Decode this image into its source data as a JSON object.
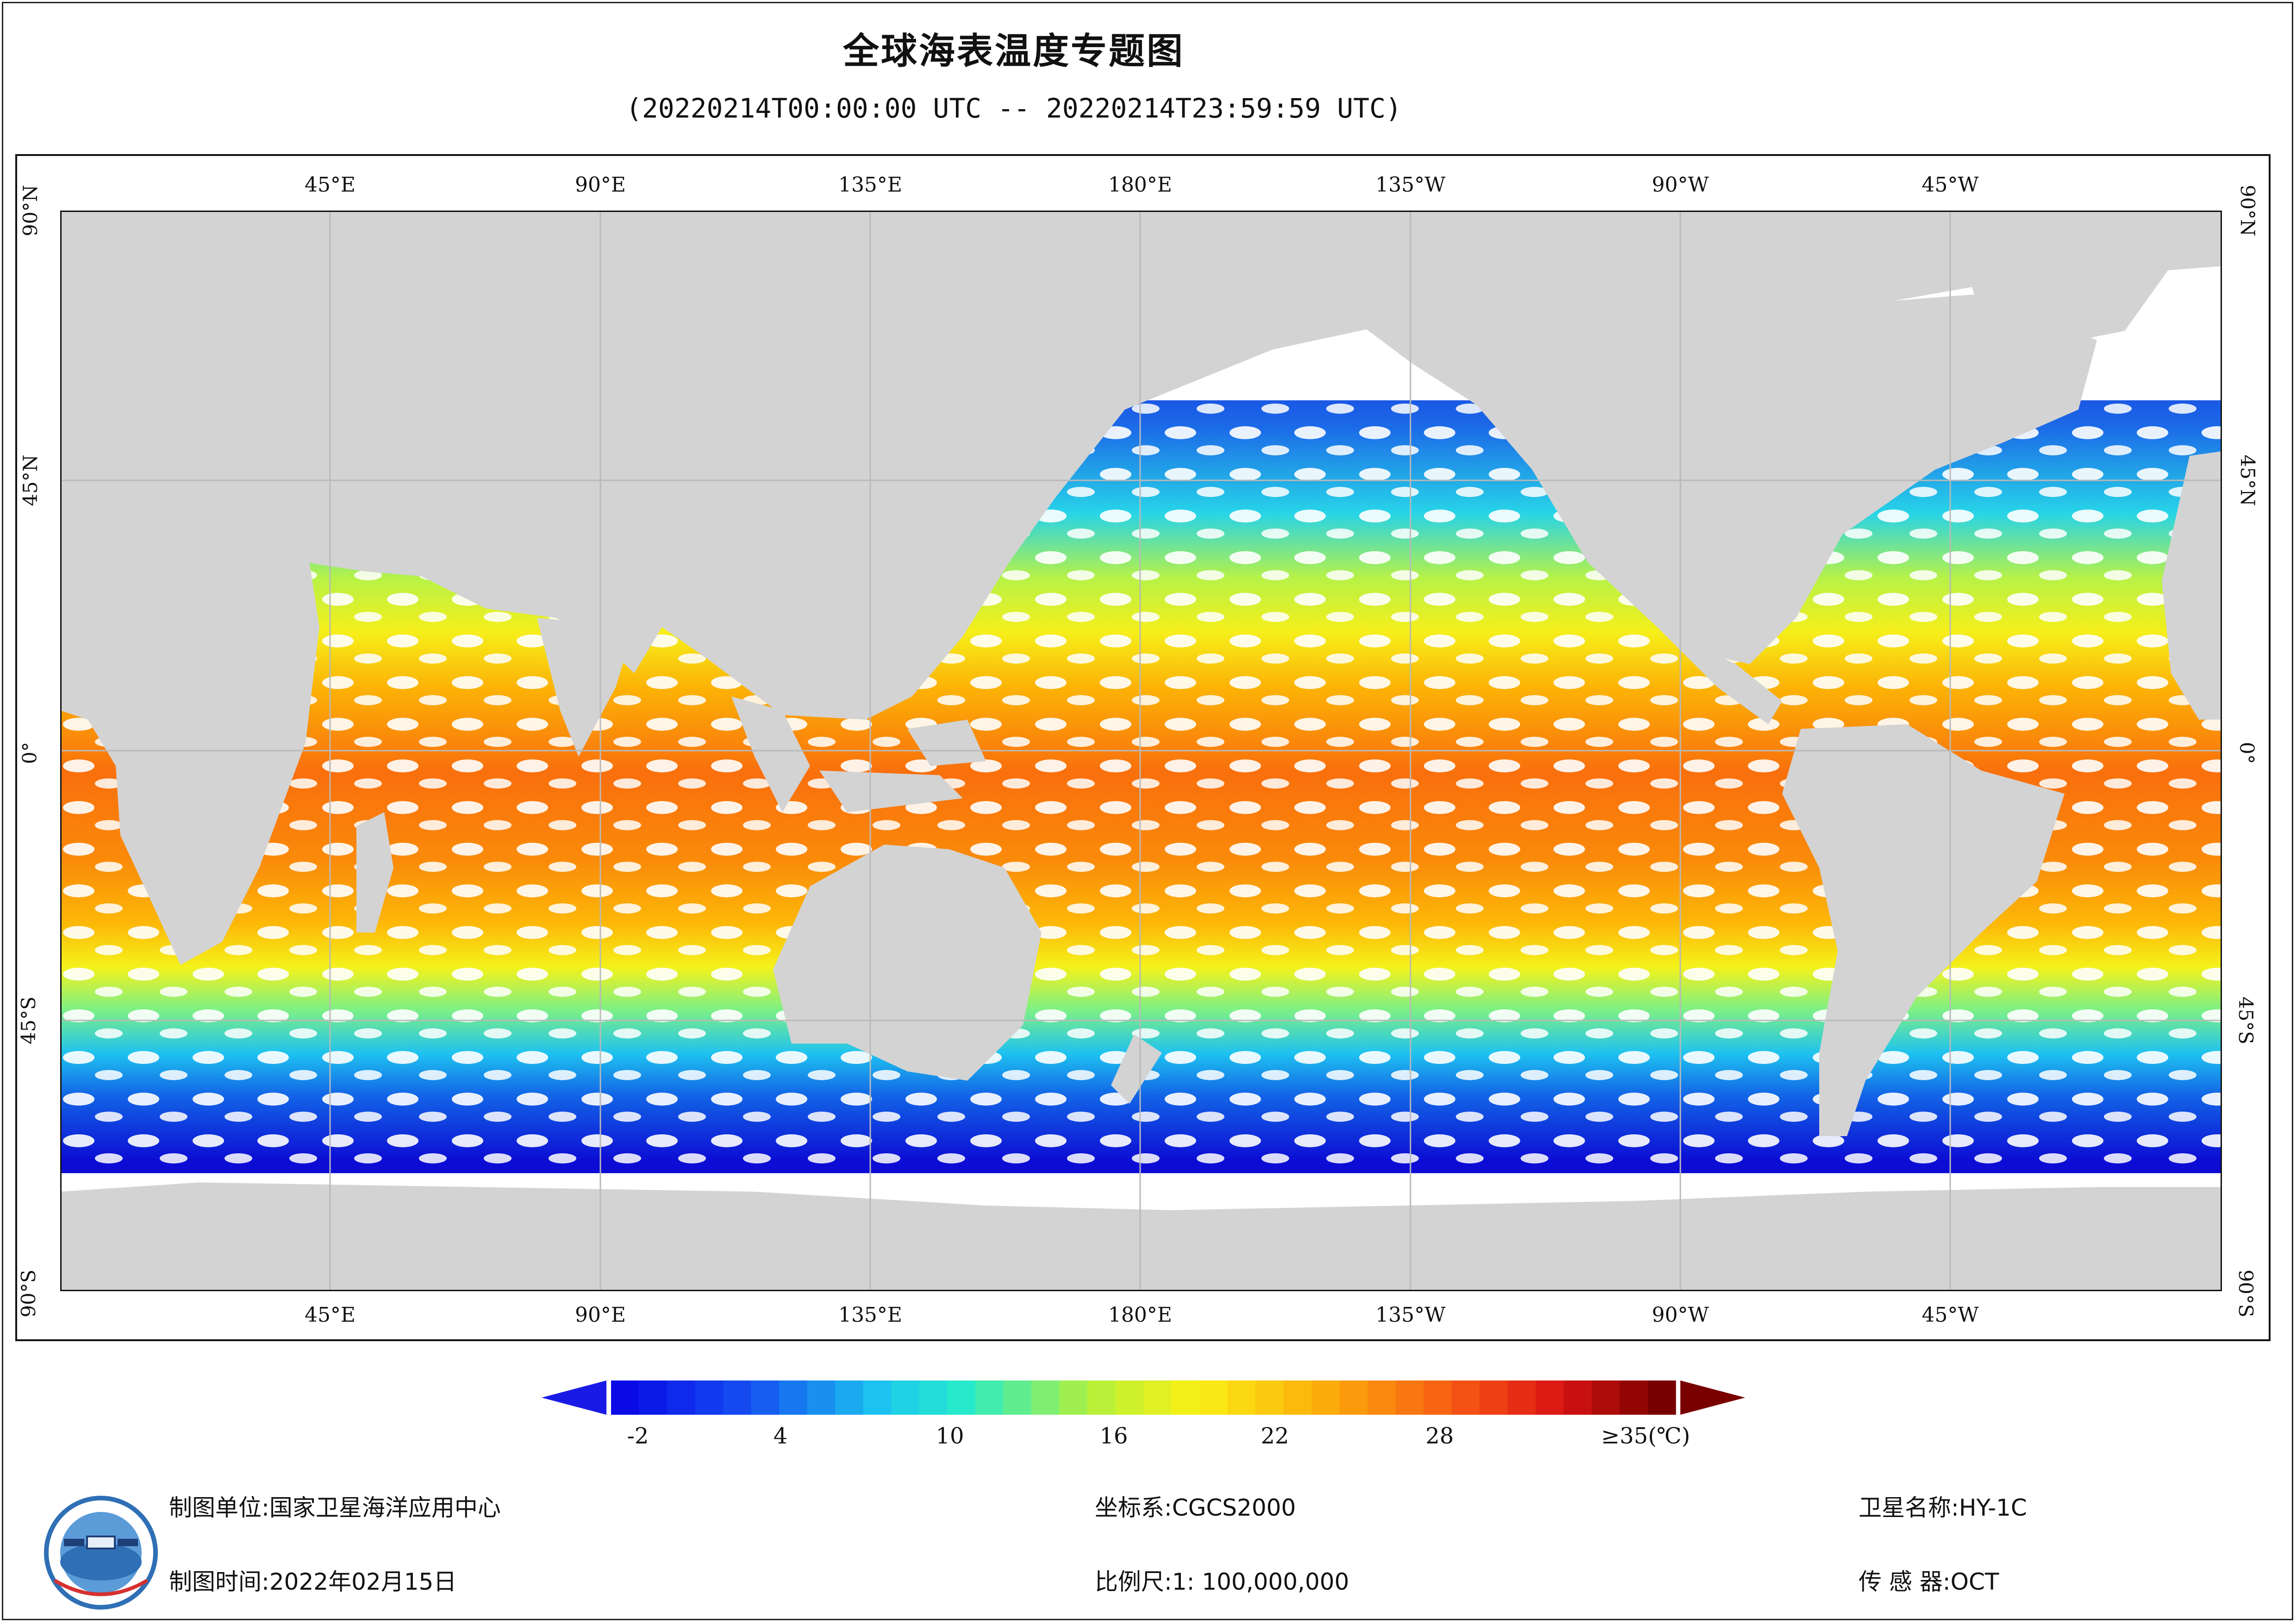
{
  "title": "全球海表温度专题图",
  "subtitle": "(20220214T00:00:00 UTC -- 20220214T23:59:59 UTC)",
  "map": {
    "top_lon_labels": [
      "45°E",
      "90°E",
      "135°E",
      "180°E",
      "135°W",
      "90°W",
      "45°W"
    ],
    "bottom_lon_labels": [
      "45°E",
      "90°E",
      "135°E",
      "180°E",
      "135°W",
      "90°W",
      "45°W"
    ],
    "left_lat_labels": [
      "90°N",
      "45°N",
      "0°",
      "45°S",
      "90°S"
    ],
    "right_lat_labels": [
      "90°N",
      "45°N",
      "0°",
      "45°S",
      "90°S"
    ],
    "colors": {
      "land": "#d3d3d3",
      "cloud_nodata": "#ffffff",
      "grid": "#b9b9b9"
    }
  },
  "colorbar": {
    "tick_labels": [
      "-2",
      "4",
      "10",
      "16",
      "22",
      "28",
      "≥35(℃)"
    ],
    "tick_values": [
      -2,
      4,
      10,
      16,
      22,
      28,
      35
    ],
    "range": [
      -3,
      35
    ],
    "left_arrow_color": "#1a1ae6",
    "right_arrow_color": "#7a0000"
  },
  "footer": {
    "unit_label": "制图单位:",
    "unit_value": "国家卫星海洋应用中心",
    "time_label": "制图时间:",
    "time_value": "2022年02月15日",
    "crs_label": "坐标系:",
    "crs_value": "CGCS2000",
    "scale_label": "比例尺:",
    "scale_value": "1: 100,000,000",
    "satellite_label": "卫星名称:",
    "satellite_value": "HY-1C",
    "sensor_label": "传 感 器:",
    "sensor_value": "OCT"
  }
}
